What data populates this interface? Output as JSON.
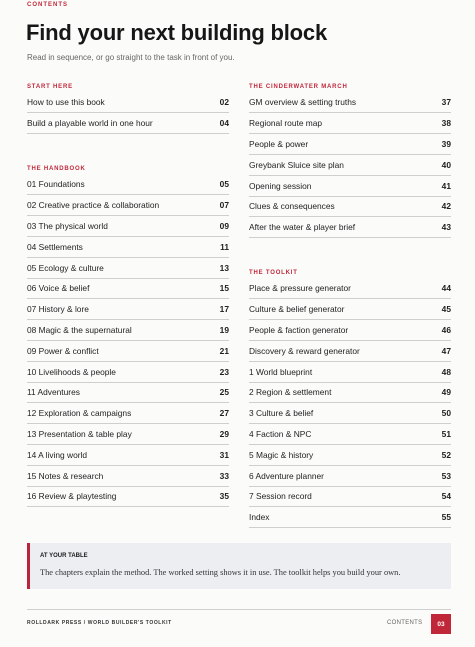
{
  "header": {
    "eyebrow": "CONTENTS",
    "title": "Find your next building block",
    "subtitle": "Read in sequence, or go straight to the task in front of you."
  },
  "sections": [
    {
      "heading": "START HERE",
      "items": [
        {
          "title": "How to use this book",
          "page": "02"
        },
        {
          "title": "Build a playable world in one hour",
          "page": "04"
        }
      ]
    },
    {
      "heading": "THE HANDBOOK",
      "items": [
        {
          "title": "01 Foundations",
          "page": "05"
        },
        {
          "title": "02 Creative practice & collaboration",
          "page": "07"
        },
        {
          "title": "03 The physical world",
          "page": "09"
        },
        {
          "title": "04 Settlements",
          "page": "11"
        },
        {
          "title": "05 Ecology & culture",
          "page": "13"
        },
        {
          "title": "06 Voice & belief",
          "page": "15"
        },
        {
          "title": "07 History & lore",
          "page": "17"
        },
        {
          "title": "08 Magic & the supernatural",
          "page": "19"
        },
        {
          "title": "09 Power & conflict",
          "page": "21"
        },
        {
          "title": "10 Livelihoods & people",
          "page": "23"
        },
        {
          "title": "11 Adventures",
          "page": "25"
        },
        {
          "title": "12 Exploration & campaigns",
          "page": "27"
        },
        {
          "title": "13 Presentation & table play",
          "page": "29"
        },
        {
          "title": "14 A living world",
          "page": "31"
        },
        {
          "title": "15 Notes & research",
          "page": "33"
        },
        {
          "title": "16 Review & playtesting",
          "page": "35"
        }
      ]
    },
    {
      "heading": "THE CINDERWATER MARCH",
      "items": [
        {
          "title": "GM overview & setting truths",
          "page": "37"
        },
        {
          "title": "Regional route map",
          "page": "38"
        },
        {
          "title": "People & power",
          "page": "39"
        },
        {
          "title": "Greybank Sluice site plan",
          "page": "40"
        },
        {
          "title": "Opening session",
          "page": "41"
        },
        {
          "title": "Clues & consequences",
          "page": "42"
        },
        {
          "title": "After the water & player brief",
          "page": "43"
        }
      ]
    },
    {
      "heading": "THE TOOLKIT",
      "items": [
        {
          "title": "Place & pressure generator",
          "page": "44"
        },
        {
          "title": "Culture & belief generator",
          "page": "45"
        },
        {
          "title": "People & faction generator",
          "page": "46"
        },
        {
          "title": "Discovery & reward generator",
          "page": "47"
        },
        {
          "title": "1 World blueprint",
          "page": "48"
        },
        {
          "title": "2 Region & settlement",
          "page": "49"
        },
        {
          "title": "3 Culture & belief",
          "page": "50"
        },
        {
          "title": "4 Faction & NPC",
          "page": "51"
        },
        {
          "title": "5 Magic & history",
          "page": "52"
        },
        {
          "title": "6 Adventure planner",
          "page": "53"
        },
        {
          "title": "7 Session record",
          "page": "54"
        },
        {
          "title": "Index",
          "page": "55"
        }
      ]
    }
  ],
  "callout": {
    "label": "AT YOUR TABLE",
    "text": "The chapters explain the method. The worked setting shows it in use. The toolkit helps you build your own."
  },
  "footer": {
    "left": "ROLLDARK PRESS / WORLD BUILDER'S TOOLKIT",
    "right": "CONTENTS",
    "page": "03"
  }
}
